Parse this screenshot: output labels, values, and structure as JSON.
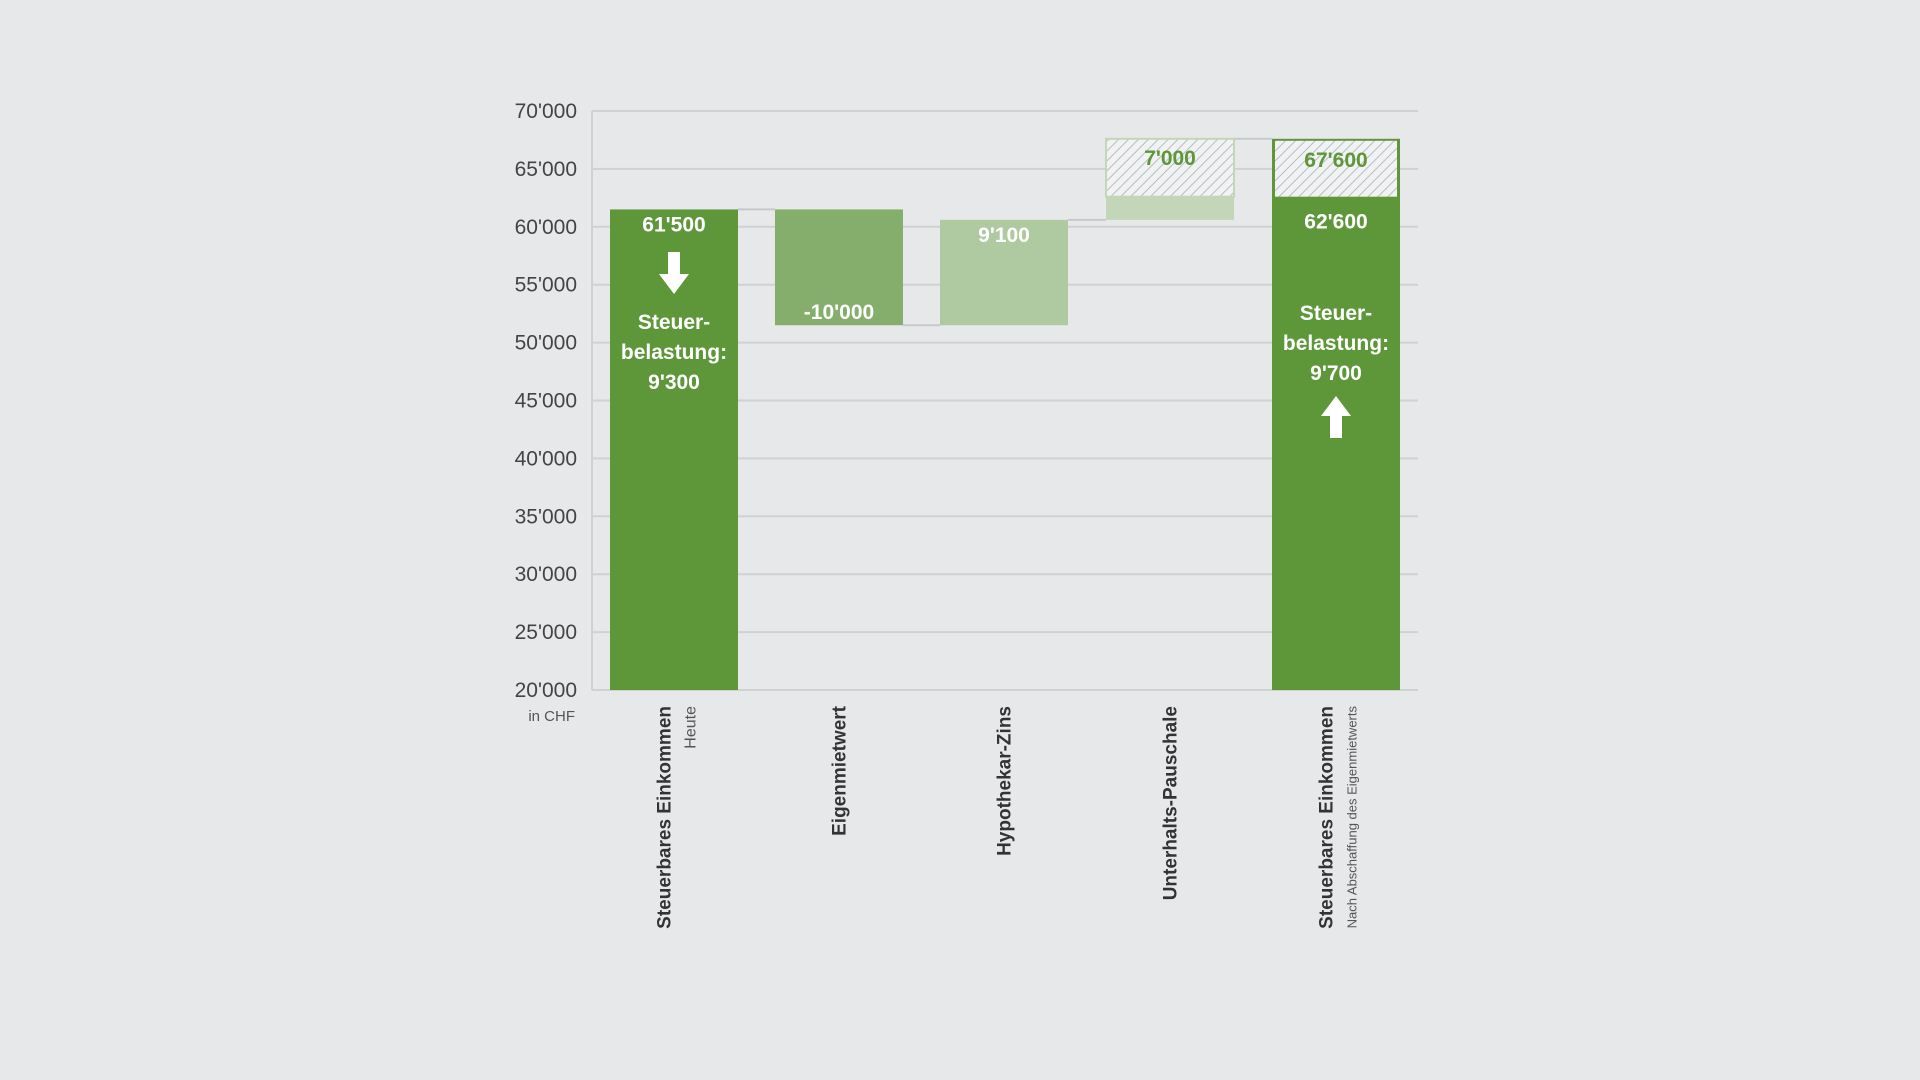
{
  "chart_data": {
    "type": "bar",
    "subtype": "waterfall",
    "ylim": [
      20000,
      70000
    ],
    "y_ticks": [
      "20'000",
      "25'000",
      "30'000",
      "35'000",
      "40'000",
      "45'000",
      "50'000",
      "55'000",
      "60'000",
      "65'000",
      "70'000"
    ],
    "y_unit": "in CHF",
    "grid": true,
    "categories": [
      {
        "label": "Steuerbares Einkommen",
        "sublabel": "Heute"
      },
      {
        "label": "Eigenmietwert",
        "sublabel": ""
      },
      {
        "label": "Hypothekar-Zins",
        "sublabel": ""
      },
      {
        "label": "Unterhalts-Pauschale",
        "sublabel": ""
      },
      {
        "label": "Steuerbares Einkommen",
        "sublabel": "Nach Abschaffung des Eigenmietwerts"
      }
    ],
    "bars": [
      {
        "kind": "total",
        "base": 20000,
        "top": 61500,
        "label": "61'500",
        "color": "#5e973a"
      },
      {
        "kind": "delta",
        "base": 51500,
        "top": 61500,
        "label": "-10'000",
        "color": "#85ad6c"
      },
      {
        "kind": "delta",
        "base": 51500,
        "top": 60600,
        "label": "9'100",
        "color": "#afc9a0"
      },
      {
        "kind": "delta",
        "base": 60600,
        "top": 67600,
        "label": "7'000",
        "color": "#c3d6b8",
        "hatched_from": 62600,
        "solid_top": 62600
      },
      {
        "kind": "total",
        "base": 20000,
        "top": 67600,
        "label": "67'600",
        "color": "#5e973a",
        "hatched_from": 62600,
        "inner_label": "62'600"
      }
    ],
    "annotations": {
      "left": {
        "lines": [
          "Steuer-",
          "belastung:",
          "9'300"
        ],
        "arrow": "down"
      },
      "right": {
        "lines": [
          "Steuer-",
          "belastung:",
          "9'700"
        ],
        "arrow": "up"
      }
    },
    "colors": {
      "total": "#5e973a",
      "value_text_hatched": "#5e973a",
      "value_text_light": "#ffffff",
      "grid": "#cfd1d3",
      "hatch": "#b9bdbf"
    }
  }
}
